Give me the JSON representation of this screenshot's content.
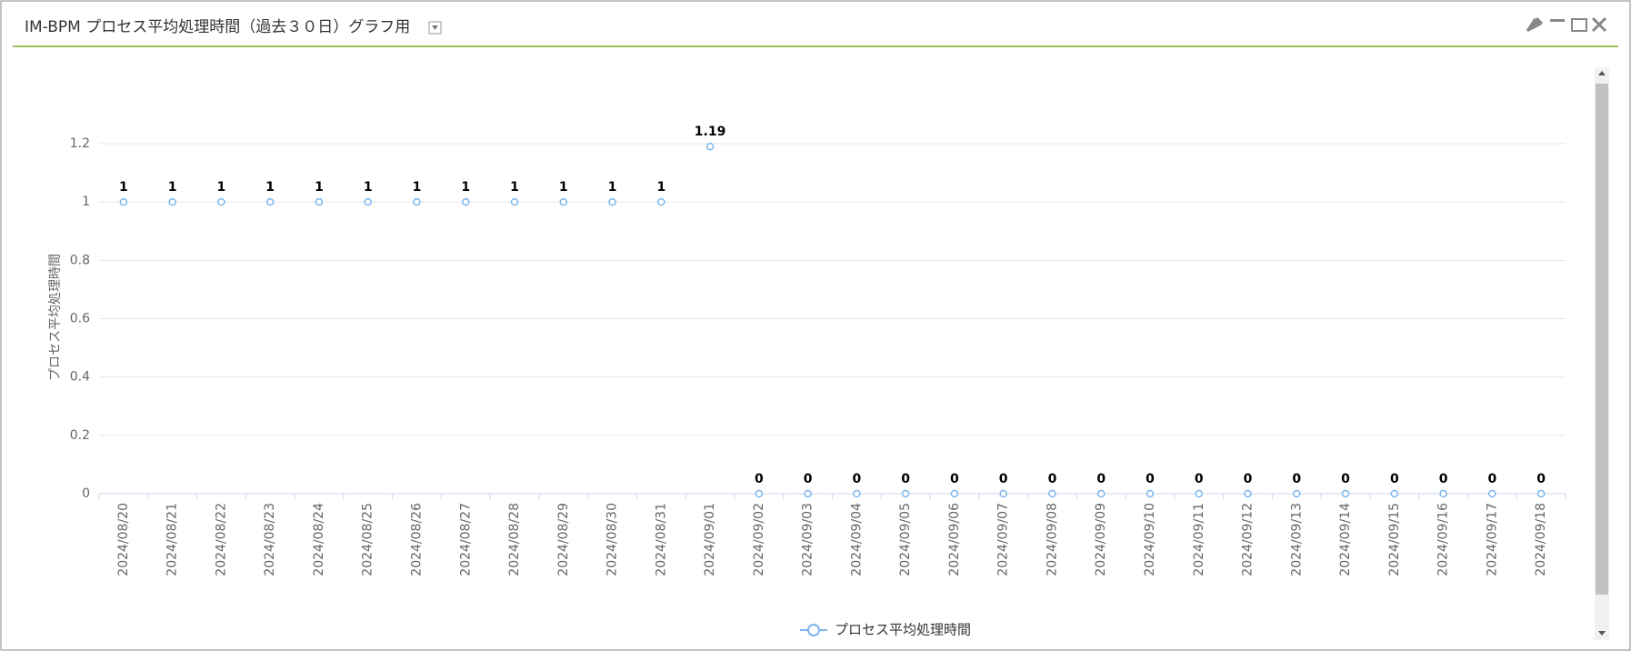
{
  "chart_data": {
    "type": "line",
    "title": "IM-BPM プロセス平均処理時間（過去３０日）グラフ用",
    "y_label": "プロセス平均処理時間",
    "categories": [
      "2024/08/20",
      "2024/08/21",
      "2024/08/22",
      "2024/08/23",
      "2024/08/24",
      "2024/08/25",
      "2024/08/26",
      "2024/08/27",
      "2024/08/28",
      "2024/08/29",
      "2024/08/30",
      "2024/08/31",
      "2024/09/01",
      "2024/09/02",
      "2024/09/03",
      "2024/09/04",
      "2024/09/05",
      "2024/09/06",
      "2024/09/07",
      "2024/09/08",
      "2024/09/09",
      "2024/09/10",
      "2024/09/11",
      "2024/09/12",
      "2024/09/13",
      "2024/09/14",
      "2024/09/15",
      "2024/09/16",
      "2024/09/17",
      "2024/09/18"
    ],
    "series": [
      {
        "name": "プロセス平均処理時間",
        "color": "#7cb5ec",
        "values": [
          1,
          1,
          1,
          1,
          1,
          1,
          1,
          1,
          1,
          1,
          1,
          1,
          1.19,
          0,
          0,
          0,
          0,
          0,
          0,
          0,
          0,
          0,
          0,
          0,
          0,
          0,
          0,
          0,
          0,
          0
        ]
      }
    ],
    "ylim": [
      0,
      1.2
    ],
    "yticks": [
      0,
      0.2,
      0.4,
      0.6,
      0.8,
      1,
      1.2
    ],
    "grid": true,
    "legend": "bottom"
  }
}
